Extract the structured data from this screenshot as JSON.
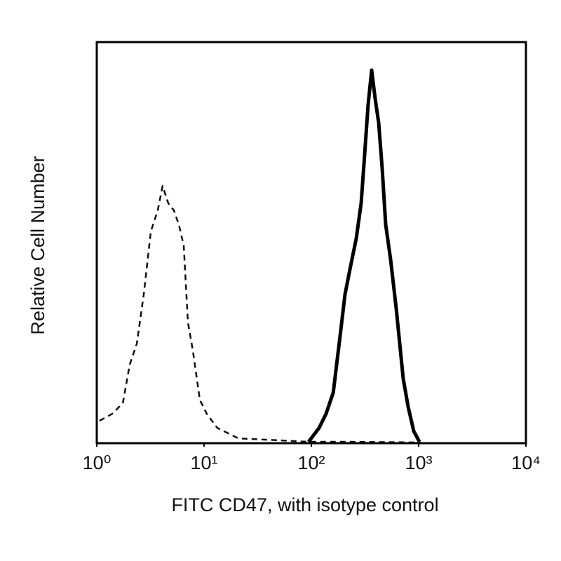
{
  "chart_data": {
    "type": "line",
    "x_label": "FITC CD47, with isotype control",
    "y_label": "Relative Cell Number",
    "xscale": "log",
    "xlim": [
      1,
      10000
    ],
    "xticks": [
      {
        "value": 1,
        "label": "10⁰"
      },
      {
        "value": 10,
        "label": "10¹"
      },
      {
        "value": 100,
        "label": "10²"
      },
      {
        "value": 1000,
        "label": "10³"
      },
      {
        "value": 10000,
        "label": "10⁴"
      }
    ],
    "ylim": [
      0,
      100
    ],
    "series": [
      {
        "color": "#111111",
        "dashed": true,
        "x": [
          1.06,
          1.39,
          1.75,
          2.03,
          2.36,
          2.74,
          3.19,
          3.7,
          4.11,
          4.64,
          5.24,
          5.82,
          6.46,
          7.07,
          7.86,
          9.14,
          10.6,
          13.3,
          20.9,
          51.5,
          94.2,
          232,
          1047
        ],
        "values": [
          5.6,
          7.3,
          10.0,
          19.6,
          24.8,
          37.1,
          52.8,
          58.0,
          64.1,
          59.8,
          58.0,
          54.5,
          49.3,
          30.1,
          23.1,
          10.8,
          7.3,
          3.8,
          1.2,
          0.7,
          0.35,
          0.35,
          0.17
        ]
      },
      {
        "color": "#000000",
        "dashed": false,
        "x": [
          94.2,
          118,
          137,
          160,
          185,
          206,
          232,
          262,
          291,
          314,
          338,
          365,
          393,
          424,
          457,
          493,
          548,
          618,
          718,
          798,
          900,
          1016
        ],
        "values": [
          0.35,
          3.8,
          7.3,
          12.6,
          26.6,
          37.1,
          44.1,
          51.0,
          59.8,
          72.0,
          84.3,
          93.0,
          86.0,
          79.9,
          68.5,
          54.5,
          45.8,
          33.6,
          16.1,
          9.1,
          3.0,
          0.35
        ]
      }
    ]
  }
}
